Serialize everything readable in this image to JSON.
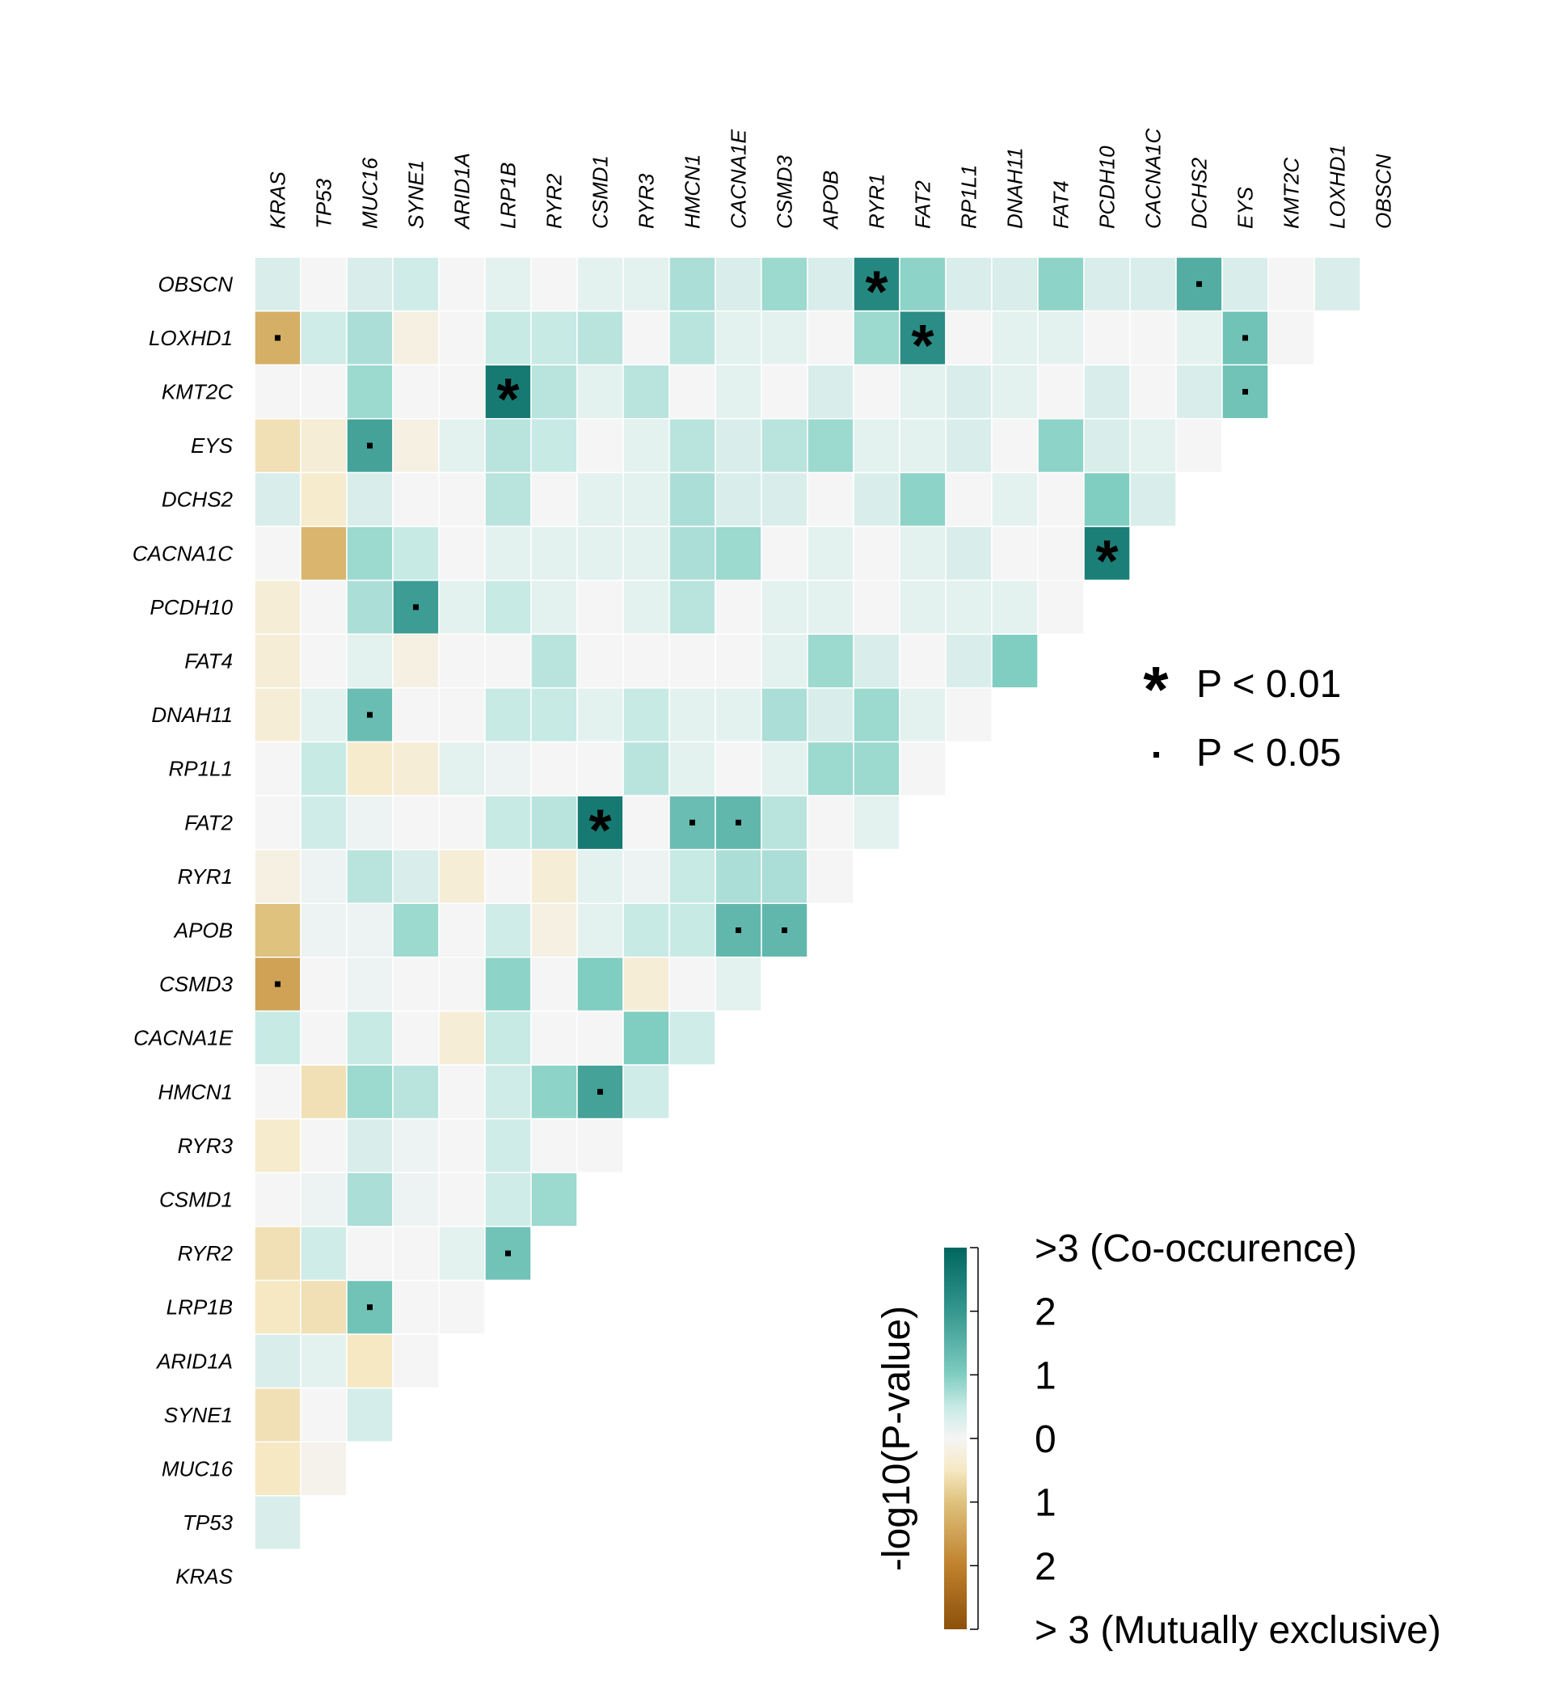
{
  "chart_data": {
    "type": "heatmap",
    "genes": [
      "KRAS",
      "TP53",
      "MUC16",
      "SYNE1",
      "ARID1A",
      "LRP1B",
      "RYR2",
      "CSMD1",
      "RYR3",
      "HMCN1",
      "CACNA1E",
      "CSMD3",
      "APOB",
      "RYR1",
      "FAT2",
      "RP1L1",
      "DNAH11",
      "FAT4",
      "PCDH10",
      "CACNA1C",
      "DCHS2",
      "EYS",
      "KMT2C",
      "LOXHD1",
      "OBSCN"
    ],
    "values": {
      "TP53": [
        0.3
      ],
      "MUC16": [
        -0.5,
        -0.1
      ],
      "SYNE1": [
        -0.6,
        0.0,
        0.35
      ],
      "ARID1A": [
        0.3,
        0.2,
        -0.5,
        0.0
      ],
      "LRP1B": [
        -0.5,
        -0.6,
        1.2,
        0.0,
        0.0
      ],
      "RYR2": [
        -0.6,
        0.4,
        0.0,
        0.0,
        0.2,
        1.2
      ],
      "CSMD1": [
        0.0,
        0.1,
        0.7,
        0.1,
        0.0,
        0.4,
        0.8
      ],
      "RYR3": [
        -0.4,
        0.0,
        0.3,
        0.1,
        0.0,
        0.4,
        0.0,
        0.0
      ],
      "HMCN1": [
        0.0,
        -0.6,
        0.8,
        0.6,
        0.0,
        0.4,
        0.9,
        1.8,
        0.4
      ],
      "CACNA1E": [
        0.5,
        0.0,
        0.5,
        0.0,
        -0.3,
        0.5,
        0.0,
        0.0,
        1.0,
        0.4
      ],
      "CSMD3": [
        -1.5,
        0.0,
        0.1,
        0.0,
        0.0,
        0.9,
        0.0,
        1.0,
        -0.3,
        0.0,
        0.2
      ],
      "APOB": [
        -1.0,
        0.1,
        0.1,
        0.8,
        0.0,
        0.4,
        -0.2,
        0.2,
        0.5,
        0.5,
        1.4,
        1.4
      ],
      "RYR1": [
        -0.2,
        0.1,
        0.6,
        0.3,
        -0.3,
        0.0,
        -0.3,
        0.2,
        0.1,
        0.5,
        0.7,
        0.7,
        0.0
      ],
      "FAT2": [
        0.0,
        0.4,
        0.1,
        0.0,
        0.0,
        0.5,
        0.6,
        2.6,
        0.0,
        1.3,
        1.4,
        0.6,
        0.0,
        0.2
      ],
      "RP1L1": [
        0.0,
        0.5,
        -0.4,
        -0.3,
        0.2,
        0.1,
        0.0,
        0.0,
        0.6,
        0.2,
        0.0,
        0.2,
        0.8,
        0.8,
        0.0
      ],
      "DNAH11": [
        -0.3,
        0.2,
        1.3,
        0.0,
        0.0,
        0.5,
        0.5,
        0.2,
        0.5,
        0.2,
        0.2,
        0.7,
        0.3,
        0.8,
        0.2,
        0.0
      ],
      "FAT4": [
        -0.3,
        0.0,
        0.2,
        -0.2,
        0.0,
        0.0,
        0.6,
        0.0,
        0.0,
        0.0,
        0.0,
        0.2,
        0.8,
        0.3,
        0.0,
        0.3,
        1.0
      ],
      "PCDH10": [
        -0.3,
        0.0,
        0.7,
        1.9,
        0.2,
        0.5,
        0.2,
        0.0,
        0.2,
        0.6,
        0.0,
        0.2,
        0.2,
        0.0,
        0.2,
        0.2,
        0.2,
        0.0
      ],
      "CACNA1C": [
        0.0,
        -1.2,
        0.8,
        0.5,
        0.0,
        0.2,
        0.2,
        0.2,
        0.2,
        0.7,
        0.8,
        0.0,
        0.2,
        0.0,
        0.2,
        0.3,
        0.0,
        0.0,
        2.5
      ],
      "DCHS2": [
        0.3,
        -0.4,
        0.3,
        0.0,
        0.0,
        0.6,
        0.0,
        0.2,
        0.2,
        0.7,
        0.3,
        0.3,
        0.0,
        0.3,
        0.9,
        0.0,
        0.2,
        0.0,
        1.0,
        0.3
      ],
      "EYS": [
        -0.6,
        -0.3,
        1.8,
        -0.2,
        0.2,
        0.6,
        0.5,
        0.0,
        0.2,
        0.6,
        0.3,
        0.6,
        0.8,
        0.2,
        0.2,
        0.3,
        0.0,
        0.9,
        0.3,
        0.2,
        0.0
      ],
      "KMT2C": [
        0.0,
        0.0,
        0.8,
        0.0,
        0.0,
        2.6,
        0.6,
        0.2,
        0.6,
        0.0,
        0.2,
        0.0,
        0.3,
        0.0,
        0.2,
        0.3,
        0.2,
        0.0,
        0.3,
        0.0,
        0.3,
        1.2
      ],
      "LOXHD1": [
        -1.3,
        0.4,
        0.7,
        -0.2,
        0.0,
        0.5,
        0.5,
        0.6,
        0.0,
        0.6,
        0.2,
        0.2,
        0.0,
        0.8,
        2.2,
        0.0,
        0.2,
        0.2,
        0.0,
        0.0,
        0.2,
        1.2,
        0.0
      ],
      "OBSCN": [
        0.3,
        0.0,
        0.3,
        0.4,
        0.0,
        0.2,
        0.0,
        0.2,
        0.2,
        0.7,
        0.3,
        0.8,
        0.3,
        2.3,
        0.9,
        0.3,
        0.3,
        0.9,
        0.3,
        0.3,
        1.6,
        0.3,
        0.0,
        0.3
      ]
    },
    "significance": [
      {
        "row": "OBSCN",
        "col": "RYR1",
        "mark": "*"
      },
      {
        "row": "OBSCN",
        "col": "DCHS2",
        "mark": "."
      },
      {
        "row": "LOXHD1",
        "col": "KRAS",
        "mark": "."
      },
      {
        "row": "LOXHD1",
        "col": "FAT2",
        "mark": "*"
      },
      {
        "row": "LOXHD1",
        "col": "EYS",
        "mark": "."
      },
      {
        "row": "KMT2C",
        "col": "LRP1B",
        "mark": "*"
      },
      {
        "row": "KMT2C",
        "col": "EYS",
        "mark": "."
      },
      {
        "row": "EYS",
        "col": "MUC16",
        "mark": "."
      },
      {
        "row": "CACNA1C",
        "col": "PCDH10",
        "mark": "*"
      },
      {
        "row": "PCDH10",
        "col": "SYNE1",
        "mark": "."
      },
      {
        "row": "DNAH11",
        "col": "MUC16",
        "mark": "."
      },
      {
        "row": "FAT2",
        "col": "CSMD1",
        "mark": "*"
      },
      {
        "row": "FAT2",
        "col": "HMCN1",
        "mark": "."
      },
      {
        "row": "FAT2",
        "col": "CACNA1E",
        "mark": "."
      },
      {
        "row": "APOB",
        "col": "CACNA1E",
        "mark": "."
      },
      {
        "row": "APOB",
        "col": "CSMD3",
        "mark": "."
      },
      {
        "row": "CSMD3",
        "col": "KRAS",
        "mark": "."
      },
      {
        "row": "HMCN1",
        "col": "CSMD1",
        "mark": "."
      },
      {
        "row": "RYR2",
        "col": "LRP1B",
        "mark": "."
      },
      {
        "row": "LRP1B",
        "col": "MUC16",
        "mark": "."
      }
    ],
    "significance_legend": [
      {
        "symbol": "*",
        "label": "P < 0.01"
      },
      {
        "symbol": ".",
        "label": "P < 0.05"
      }
    ],
    "colorbar": {
      "title": "-log10(P-value)",
      "range": [
        -3,
        3
      ],
      "tick_labels": [
        ">3 (Co-occurence)",
        "2",
        "1",
        "0",
        "1",
        "2",
        "> 3 (Mutually exclusive)"
      ],
      "colors": {
        "co_occurrence_max": "#01665e",
        "neutral": "#f5f5f5",
        "exclusive_max": "#8c510a"
      }
    }
  }
}
